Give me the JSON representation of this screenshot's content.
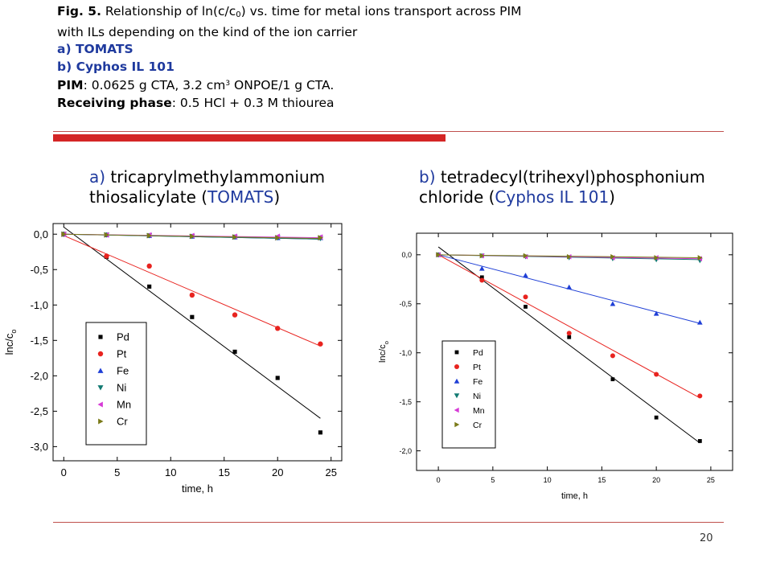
{
  "caption": {
    "fig_label": "Fig. 5.",
    "line1_a": " Relationship of ln(c/c",
    "line1_sub": "0",
    "line1_b": ") vs. time for metal ions transport across PIM",
    "line2": "with ILs depending on the kind of the ion carrier",
    "item_a": "a) TOMATS",
    "item_b": "b) Cyphos IL 101",
    "pim_label": "PIM",
    "pim_text_a": ": 0.0625 g CTA, 3.2 cm",
    "pim_sup": "3",
    "pim_text_b": " ONPOE/1 g CTA.",
    "receiving_label": "Receiving phase",
    "receiving_text": ": 0.5 HCl + 0.3 M thiourea"
  },
  "headings": {
    "a_letter": "a)",
    "a_line1_rest": " tricaprylmethylammonium",
    "a_line2_pre": "thiosalicylate (",
    "a_line2_accent": "TOMATS",
    "a_line2_post": ")",
    "b_letter": "b)",
    "b_line1_rest": " tetradecyl(trihexyl)phosphonium",
    "b_line2_pre": " chloride (",
    "b_line2_accent": "Cyphos IL 101",
    "b_line2_post": ")"
  },
  "page_number": "20",
  "colors": {
    "Pd": "#000000",
    "Pt": "#e8231f",
    "Fe": "#1f3fd6",
    "Ni": "#127a72",
    "Mn": "#d63ad6",
    "Cr": "#7a7a18",
    "rule_thin": "#c0504d",
    "rule_thick": "#d42525",
    "accent_text": "#1f3a9e"
  },
  "chart_data": [
    {
      "type": "scatter",
      "panel": "a",
      "xlabel": "time, h",
      "ylabel": "lnc/c",
      "ylabel_sub": "o",
      "xlim": [
        -1,
        26
      ],
      "ylim": [
        -3.2,
        0.15
      ],
      "xticks": [
        0,
        5,
        10,
        15,
        20,
        25
      ],
      "xtick_labels": [
        "0",
        "5",
        "10",
        "15",
        "20",
        "25"
      ],
      "yticks": [
        0,
        -0.5,
        -1.0,
        -1.5,
        -2.0,
        -2.5,
        -3.0
      ],
      "ytick_labels": [
        "0,0",
        "-0,5",
        "-1,0",
        "-1,5",
        "-2,0",
        "-2,5",
        "-3,0"
      ],
      "legend_position": "left",
      "series": [
        {
          "name": "Pd",
          "marker": "square",
          "x": [
            0,
            4,
            8,
            12,
            16,
            20,
            24
          ],
          "y": [
            0,
            -0.32,
            -0.74,
            -1.17,
            -1.66,
            -2.03,
            -2.8
          ],
          "fit": [
            [
              0,
              0.1
            ],
            [
              24,
              -2.6
            ]
          ]
        },
        {
          "name": "Pt",
          "marker": "circle",
          "x": [
            0,
            4,
            8,
            12,
            16,
            20,
            24
          ],
          "y": [
            0,
            -0.31,
            -0.45,
            -0.86,
            -1.14,
            -1.33,
            -1.55
          ],
          "fit": [
            [
              0,
              -0.02
            ],
            [
              24,
              -1.58
            ]
          ]
        },
        {
          "name": "Fe",
          "marker": "triangle-up",
          "x": [
            0,
            4,
            8,
            12,
            16,
            20,
            24
          ],
          "y": [
            0,
            -0.01,
            -0.02,
            -0.03,
            -0.04,
            -0.05,
            -0.05
          ],
          "fit": [
            [
              0,
              0
            ],
            [
              24,
              -0.07
            ]
          ]
        },
        {
          "name": "Ni",
          "marker": "triangle-down",
          "x": [
            0,
            4,
            8,
            12,
            16,
            20,
            24
          ],
          "y": [
            0,
            -0.01,
            -0.02,
            -0.03,
            -0.04,
            -0.05,
            -0.06
          ],
          "fit": [
            [
              0,
              0
            ],
            [
              24,
              -0.07
            ]
          ]
        },
        {
          "name": "Mn",
          "marker": "triangle-left",
          "x": [
            0,
            4,
            8,
            12,
            16,
            20,
            24
          ],
          "y": [
            0,
            -0.01,
            -0.01,
            -0.02,
            -0.03,
            -0.03,
            -0.04
          ],
          "fit": [
            [
              0,
              0
            ],
            [
              24,
              -0.05
            ]
          ]
        },
        {
          "name": "Cr",
          "marker": "triangle-right",
          "x": [
            0,
            4,
            8,
            12,
            16,
            20,
            24
          ],
          "y": [
            0,
            -0.01,
            -0.02,
            -0.03,
            -0.04,
            -0.05,
            -0.05
          ],
          "fit": [
            [
              0,
              0
            ],
            [
              24,
              -0.06
            ]
          ]
        }
      ]
    },
    {
      "type": "scatter",
      "panel": "b",
      "xlabel": "time, h",
      "ylabel": "lnc/c",
      "ylabel_sub": "o",
      "xlim": [
        -2,
        27
      ],
      "ylim": [
        -2.2,
        0.22
      ],
      "xticks": [
        0,
        5,
        10,
        15,
        20,
        25
      ],
      "xtick_labels": [
        "0",
        "5",
        "10",
        "15",
        "20",
        "25"
      ],
      "yticks": [
        0,
        -0.5,
        -1.0,
        -1.5,
        -2.0
      ],
      "ytick_labels": [
        "0,0",
        "-0,5",
        "-1,0",
        "-1,5",
        "-2,0"
      ],
      "legend_position": "left",
      "series": [
        {
          "name": "Pd",
          "marker": "square",
          "x": [
            0,
            4,
            8,
            12,
            16,
            20,
            24
          ],
          "y": [
            0,
            -0.23,
            -0.53,
            -0.84,
            -1.27,
            -1.66,
            -1.9
          ],
          "fit": [
            [
              0,
              0.08
            ],
            [
              24,
              -1.92
            ]
          ]
        },
        {
          "name": "Pt",
          "marker": "circle",
          "x": [
            0,
            4,
            8,
            12,
            16,
            20,
            24
          ],
          "y": [
            0,
            -0.26,
            -0.43,
            -0.8,
            -1.03,
            -1.22,
            -1.44
          ],
          "fit": [
            [
              0,
              0
            ],
            [
              24,
              -1.46
            ]
          ]
        },
        {
          "name": "Fe",
          "marker": "triangle-up",
          "x": [
            0,
            4,
            8,
            12,
            16,
            20,
            24
          ],
          "y": [
            0,
            -0.14,
            -0.21,
            -0.33,
            -0.5,
            -0.6,
            -0.69
          ],
          "fit": [
            [
              0,
              0
            ],
            [
              24,
              -0.7
            ]
          ]
        },
        {
          "name": "Ni",
          "marker": "triangle-down",
          "x": [
            0,
            4,
            8,
            12,
            16,
            20,
            24
          ],
          "y": [
            0,
            -0.01,
            -0.02,
            -0.03,
            -0.04,
            -0.05,
            -0.06
          ],
          "fit": [
            [
              0,
              0
            ],
            [
              24,
              -0.05
            ]
          ]
        },
        {
          "name": "Mn",
          "marker": "triangle-left",
          "x": [
            0,
            4,
            8,
            12,
            16,
            20,
            24
          ],
          "y": [
            0,
            -0.01,
            -0.02,
            -0.02,
            -0.03,
            -0.03,
            -0.04
          ],
          "fit": [
            [
              0,
              0
            ],
            [
              24,
              -0.04
            ]
          ]
        },
        {
          "name": "Cr",
          "marker": "triangle-right",
          "x": [
            0,
            4,
            8,
            12,
            16,
            20,
            24
          ],
          "y": [
            0,
            -0.01,
            -0.01,
            -0.02,
            -0.02,
            -0.03,
            -0.03
          ],
          "fit": [
            [
              0,
              0
            ],
            [
              24,
              -0.03
            ]
          ]
        }
      ]
    }
  ]
}
